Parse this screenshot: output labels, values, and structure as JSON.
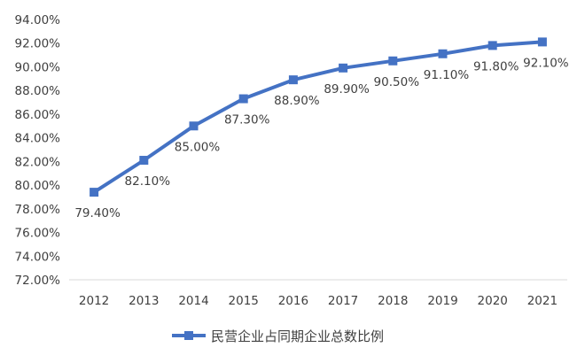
{
  "chart_data": {
    "type": "line",
    "x": [
      "2012",
      "2013",
      "2014",
      "2015",
      "2016",
      "2017",
      "2018",
      "2019",
      "2020",
      "2021"
    ],
    "series": [
      {
        "name": "民营企业占同期企业总数比例",
        "values": [
          79.4,
          82.1,
          85.0,
          87.3,
          88.9,
          89.9,
          90.5,
          91.1,
          91.8,
          92.1
        ],
        "data_labels": [
          "79.40%",
          "82.10%",
          "85.00%",
          "87.30%",
          "88.90%",
          "89.90%",
          "90.50%",
          "91.10%",
          "91.80%",
          "92.10%"
        ],
        "color": "#4472C4"
      }
    ],
    "ylim": [
      72,
      94
    ],
    "ystep": 2,
    "y_tick_labels": [
      "72.00%",
      "74.00%",
      "76.00%",
      "78.00%",
      "80.00%",
      "82.00%",
      "84.00%",
      "86.00%",
      "88.00%",
      "90.00%",
      "92.00%",
      "94.00%"
    ],
    "grid": false,
    "legend": "bottom",
    "title": "",
    "xlabel": "",
    "ylabel": ""
  }
}
